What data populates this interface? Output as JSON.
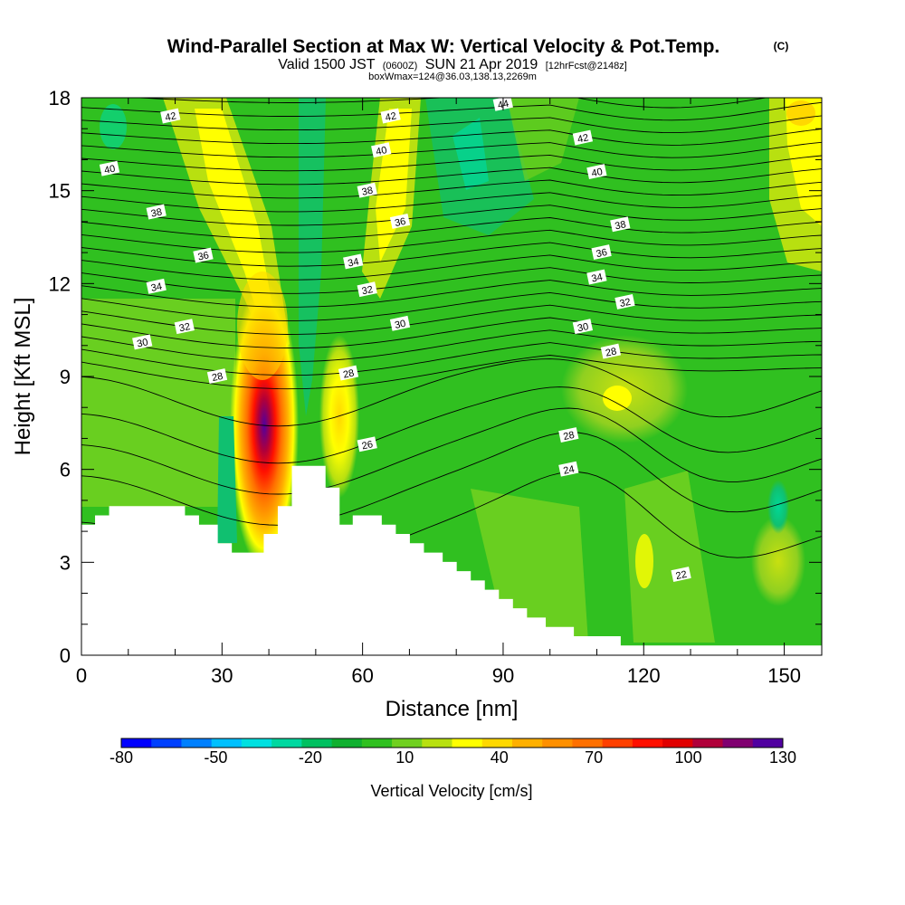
{
  "chart_data": {
    "type": "heatmap",
    "title": "Wind-Parallel Section at Max W: Vertical Velocity & Pot.Temp.",
    "title_mark": "(C)",
    "subtitle_parts": [
      "Valid 1500 JST",
      "(0600Z)",
      "SUN 21 Apr 2019",
      "[12hrFcst@2148z]"
    ],
    "subtitle2": "boxWmax=124@36.03,138.13,2269m",
    "xlabel": "Distance [nm]",
    "ylabel": "Height [Kft MSL]",
    "xlim": [
      0,
      158
    ],
    "ylim": [
      0,
      18
    ],
    "x_ticks": [
      "0",
      "30",
      "60",
      "90",
      "120",
      "150"
    ],
    "x_tick_values": [
      0,
      30,
      60,
      90,
      120,
      150
    ],
    "y_ticks": [
      "0",
      "3",
      "6",
      "9",
      "12",
      "15",
      "18"
    ],
    "y_tick_values": [
      0,
      3,
      6,
      9,
      12,
      15,
      18
    ],
    "colorbar": {
      "label": "Vertical Velocity [cm/s]",
      "tick_labels": [
        "-80",
        "-50",
        "-20",
        "10",
        "40",
        "70",
        "100",
        "130"
      ],
      "levels": [
        -80,
        -70,
        -60,
        -50,
        -40,
        -30,
        -20,
        -10,
        0,
        10,
        20,
        30,
        40,
        50,
        60,
        70,
        80,
        90,
        100,
        110,
        120,
        130
      ],
      "colors": [
        "#0000ff",
        "#0040ff",
        "#0080ff",
        "#00c0ff",
        "#00e0e0",
        "#00d8a0",
        "#00c060",
        "#10b030",
        "#30c020",
        "#70d020",
        "#b8e010",
        "#ffff00",
        "#ffd800",
        "#ffb000",
        "#ff9000",
        "#ff7000",
        "#ff4000",
        "#ff1000",
        "#e00000",
        "#b0003a",
        "#800070",
        "#5000a0"
      ]
    },
    "theta_contour_labels": [
      {
        "text": "42",
        "x": 19,
        "y": 17.4
      },
      {
        "text": "40",
        "x": 6,
        "y": 15.7
      },
      {
        "text": "38",
        "x": 16,
        "y": 14.3
      },
      {
        "text": "36",
        "x": 26,
        "y": 12.9
      },
      {
        "text": "34",
        "x": 16,
        "y": 11.9
      },
      {
        "text": "32",
        "x": 22,
        "y": 10.6
      },
      {
        "text": "30",
        "x": 13,
        "y": 10.1
      },
      {
        "text": "28",
        "x": 29,
        "y": 9.0
      },
      {
        "text": "42",
        "x": 66,
        "y": 17.4
      },
      {
        "text": "40",
        "x": 64,
        "y": 16.3
      },
      {
        "text": "38",
        "x": 61,
        "y": 15.0
      },
      {
        "text": "36",
        "x": 68,
        "y": 14.0
      },
      {
        "text": "34",
        "x": 58,
        "y": 12.7
      },
      {
        "text": "32",
        "x": 61,
        "y": 11.8
      },
      {
        "text": "30",
        "x": 68,
        "y": 10.7
      },
      {
        "text": "28",
        "x": 57,
        "y": 9.1
      },
      {
        "text": "26",
        "x": 61,
        "y": 6.8
      },
      {
        "text": "44",
        "x": 90,
        "y": 17.8
      },
      {
        "text": "42",
        "x": 107,
        "y": 16.7
      },
      {
        "text": "40",
        "x": 110,
        "y": 15.6
      },
      {
        "text": "38",
        "x": 115,
        "y": 13.9
      },
      {
        "text": "36",
        "x": 111,
        "y": 13.0
      },
      {
        "text": "34",
        "x": 110,
        "y": 12.2
      },
      {
        "text": "32",
        "x": 116,
        "y": 11.4
      },
      {
        "text": "30",
        "x": 107,
        "y": 10.6
      },
      {
        "text": "28",
        "x": 113,
        "y": 9.8
      },
      {
        "text": "28",
        "x": 104,
        "y": 7.1
      },
      {
        "text": "24",
        "x": 104,
        "y": 6.0
      },
      {
        "text": "22",
        "x": 128,
        "y": 2.6
      }
    ],
    "terrain_profile": [
      {
        "x": 0,
        "y": 4.2
      },
      {
        "x": 3,
        "y": 4.2
      },
      {
        "x": 3,
        "y": 4.5
      },
      {
        "x": 6,
        "y": 4.5
      },
      {
        "x": 6,
        "y": 4.8
      },
      {
        "x": 22,
        "y": 4.8
      },
      {
        "x": 22,
        "y": 4.5
      },
      {
        "x": 25,
        "y": 4.5
      },
      {
        "x": 25,
        "y": 4.2
      },
      {
        "x": 29,
        "y": 4.2
      },
      {
        "x": 29,
        "y": 3.6
      },
      {
        "x": 32,
        "y": 3.6
      },
      {
        "x": 32,
        "y": 3.3
      },
      {
        "x": 39,
        "y": 3.3
      },
      {
        "x": 39,
        "y": 3.9
      },
      {
        "x": 42,
        "y": 3.9
      },
      {
        "x": 42,
        "y": 4.8
      },
      {
        "x": 45,
        "y": 4.8
      },
      {
        "x": 45,
        "y": 6.1
      },
      {
        "x": 52,
        "y": 6.1
      },
      {
        "x": 52,
        "y": 5.4
      },
      {
        "x": 55,
        "y": 5.4
      },
      {
        "x": 55,
        "y": 4.2
      },
      {
        "x": 58,
        "y": 4.2
      },
      {
        "x": 58,
        "y": 4.5
      },
      {
        "x": 64,
        "y": 4.5
      },
      {
        "x": 64,
        "y": 4.2
      },
      {
        "x": 67,
        "y": 4.2
      },
      {
        "x": 67,
        "y": 3.9
      },
      {
        "x": 70,
        "y": 3.9
      },
      {
        "x": 70,
        "y": 3.6
      },
      {
        "x": 73,
        "y": 3.6
      },
      {
        "x": 73,
        "y": 3.3
      },
      {
        "x": 77,
        "y": 3.3
      },
      {
        "x": 77,
        "y": 3.0
      },
      {
        "x": 80,
        "y": 3.0
      },
      {
        "x": 80,
        "y": 2.7
      },
      {
        "x": 83,
        "y": 2.7
      },
      {
        "x": 83,
        "y": 2.4
      },
      {
        "x": 86,
        "y": 2.4
      },
      {
        "x": 86,
        "y": 2.1
      },
      {
        "x": 89,
        "y": 2.1
      },
      {
        "x": 89,
        "y": 1.8
      },
      {
        "x": 92,
        "y": 1.8
      },
      {
        "x": 92,
        "y": 1.5
      },
      {
        "x": 95,
        "y": 1.5
      },
      {
        "x": 95,
        "y": 1.2
      },
      {
        "x": 99,
        "y": 1.2
      },
      {
        "x": 99,
        "y": 0.9
      },
      {
        "x": 105,
        "y": 0.9
      },
      {
        "x": 105,
        "y": 0.6
      },
      {
        "x": 115,
        "y": 0.6
      },
      {
        "x": 115,
        "y": 0.3
      },
      {
        "x": 158,
        "y": 0.3
      }
    ],
    "wmax": {
      "value": 124,
      "x": 39,
      "y": 7.8
    }
  }
}
